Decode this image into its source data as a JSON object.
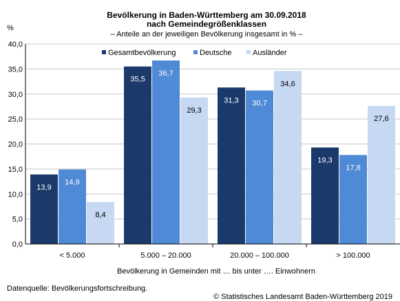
{
  "chart_data": {
    "type": "bar",
    "title": "Bevölkerung in Baden-Württemberg am 30.09.2018",
    "title2": "nach Gemeindegrößenklassen",
    "subtitle": "– Anteile  an der jeweiligen Bevölkerung insgesamt in % –",
    "ylabel": "%",
    "xlabel": "Bevölkerung in Gemeinden mit … bis unter …. Einwohnern",
    "categories": [
      "< 5.000",
      "5.000 – 20.000",
      "20.000 – 100.000",
      "> 100.000"
    ],
    "series": [
      {
        "name": "Gesamtbevölkerung",
        "color": "#1b3a6b",
        "values": [
          13.9,
          35.5,
          31.3,
          19.3
        ],
        "labels": [
          "13,9",
          "35,5",
          "31,3",
          "19,3"
        ]
      },
      {
        "name": "Deutsche",
        "color": "#4f8ad6",
        "values": [
          14.9,
          36.7,
          30.7,
          17.8
        ],
        "labels": [
          "14,9",
          "36,7",
          "30,7",
          "17,8"
        ]
      },
      {
        "name": "Ausländer",
        "color": "#c6d8f2",
        "values": [
          8.4,
          29.3,
          34.6,
          27.6
        ],
        "labels": [
          "8,4",
          "29,3",
          "34,6",
          "27,6"
        ]
      }
    ],
    "ylim": [
      0,
      40
    ],
    "yticks": [
      "0,0",
      "5,0",
      "10,0",
      "15,0",
      "20,0",
      "25,0",
      "30,0",
      "35,0",
      "40,0"
    ],
    "grid": true,
    "legend": "top"
  },
  "footer": {
    "source": "Datenquelle: Bevölkerungsfortschreibung.",
    "copyright": "© Statistisches Landesamt Baden-Württemberg 2019"
  }
}
